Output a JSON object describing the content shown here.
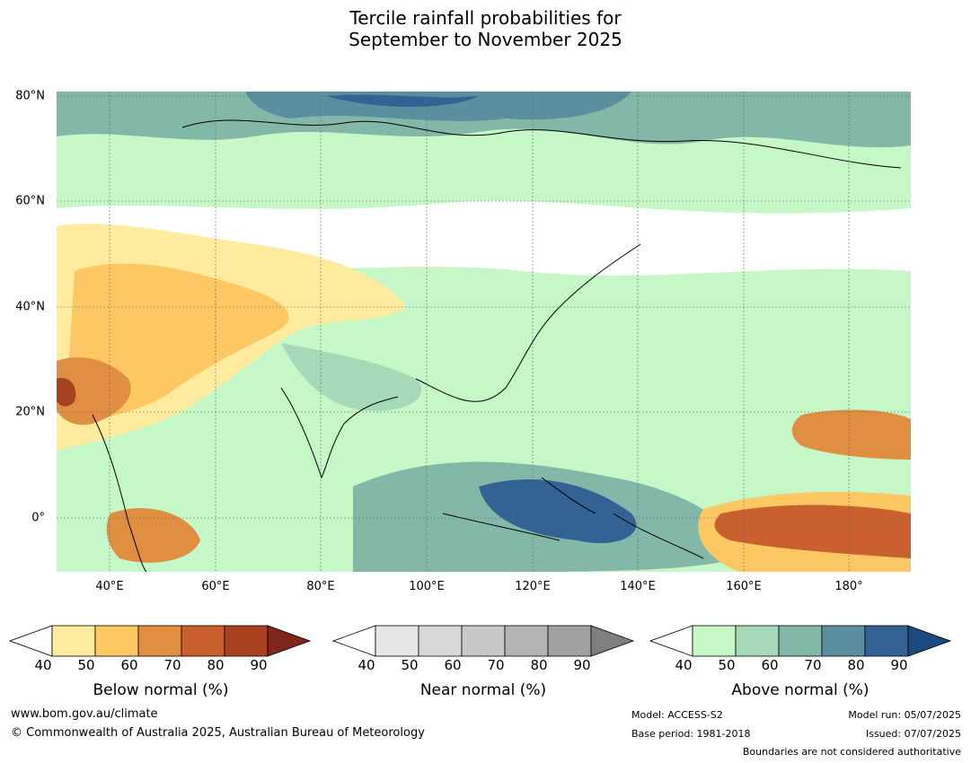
{
  "title": {
    "line1": "Tercile rainfall probabilities for",
    "line2": "September to November 2025"
  },
  "map": {
    "lat_labels": [
      "80°N",
      "60°N",
      "40°N",
      "20°N",
      "0°"
    ],
    "lon_labels": [
      "40°E",
      "60°E",
      "80°E",
      "100°E",
      "120°E",
      "140°E",
      "160°E",
      "180°"
    ]
  },
  "colorbars": {
    "below": {
      "label": "Below normal (%)",
      "ticks": [
        "40",
        "50",
        "60",
        "70",
        "80",
        "90"
      ],
      "colors": [
        "#ffeb9e",
        "#fdc864",
        "#e08f42",
        "#c9602e",
        "#a84220",
        "#80261a"
      ]
    },
    "near": {
      "label": "Near normal (%)",
      "ticks": [
        "40",
        "50",
        "60",
        "70",
        "80",
        "90"
      ],
      "colors": [
        "#e6e6e6",
        "#d8d8d8",
        "#c8c8c8",
        "#b4b4b4",
        "#a0a0a0",
        "#7f7f7f"
      ]
    },
    "above": {
      "label": "Above normal (%)",
      "ticks": [
        "40",
        "50",
        "60",
        "70",
        "80",
        "90"
      ],
      "colors": [
        "#c6f7c6",
        "#a6d9b8",
        "#83b8a8",
        "#5a8fa0",
        "#336295",
        "#1b4a80"
      ]
    }
  },
  "footer": {
    "url": "www.bom.gov.au/climate",
    "copyright": "© Commonwealth of Australia 2025, Australian Bureau of Meteorology",
    "model": "Model: ACCESS-S2",
    "base_period": "Base period: 1981-2018",
    "model_run": "Model run: 05/07/2025",
    "issued": "Issued: 07/07/2025",
    "disclaimer": "Boundaries are not considered authoritative"
  }
}
